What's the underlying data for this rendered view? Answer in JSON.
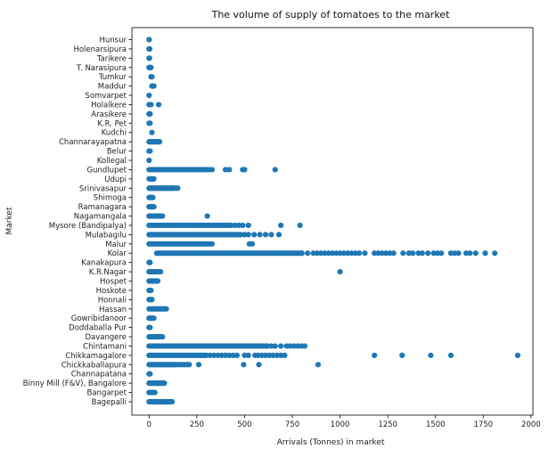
{
  "chart_data": {
    "type": "scatter",
    "title": "The volume of supply of tomatoes to the market",
    "xlabel": "Arrivals (Tonnes) in market",
    "ylabel": "Market",
    "xlim": [
      -90,
      2010
    ],
    "xticks": [
      0,
      250,
      500,
      750,
      1000,
      1250,
      1500,
      1750,
      2000
    ],
    "grid": false,
    "marker_color": "#1f77b4",
    "categories": [
      "Bagepalli",
      "Bangarpet",
      "Binny Mill (F&V), Bangalore",
      "Channapatana",
      "Chickkaballapura",
      "Chikkamagalore",
      "Chintamani",
      "Davangere",
      "Doddaballa Pur",
      "Gowribidanoor",
      "Hassan",
      "Honnali",
      "Hoskote",
      "Hospet",
      "K.R.Nagar",
      "Kanakapura",
      "Kolar",
      "Malur",
      "Mulabagilu",
      "Mysore (Bandipalya)",
      "Nagamangala",
      "Ramanagara",
      "Shimoga",
      "Srinivasapur",
      "Udupi",
      "Gundlupet",
      "Kollegal",
      "Belur",
      "Channarayapatna",
      "Kudchi",
      "K.R. Pet",
      "Arasikere",
      "Holalkere",
      "Somvarpet",
      "Maddur",
      "Tumkur",
      "T. Narasipura",
      "Tarikere",
      "Holenarsipura",
      "Hunsur"
    ],
    "series": [
      {
        "points": [
          {
            "market": "Bagepalli",
            "x": [
              0,
              5,
              10,
              15,
              20,
              25,
              30,
              35,
              40,
              45,
              50,
              55,
              60,
              65,
              70,
              75,
              80,
              85,
              90,
              95,
              100,
              105,
              110,
              115,
              120
            ]
          },
          {
            "market": "Bangarpet",
            "x": [
              0,
              5,
              10,
              15,
              20,
              25,
              30
            ]
          },
          {
            "market": "Binny Mill (F&V), Bangalore",
            "x": [
              0,
              5,
              10,
              15,
              20,
              25,
              30,
              35,
              40,
              45,
              50,
              55,
              60,
              65,
              70,
              75,
              80
            ]
          },
          {
            "market": "Channapatana",
            "x": [
              0,
              5
            ]
          },
          {
            "market": "Chickkaballapura",
            "x": [
              0,
              5,
              10,
              15,
              20,
              25,
              30,
              35,
              40,
              45,
              50,
              55,
              60,
              65,
              70,
              75,
              80,
              85,
              90,
              95,
              100,
              105,
              110,
              115,
              120,
              125,
              130,
              135,
              140,
              150,
              160,
              170,
              180,
              190,
              200,
              210,
              260,
              495,
              575,
              885
            ]
          },
          {
            "market": "Chikkamagalore",
            "x": [
              0,
              10,
              20,
              30,
              40,
              50,
              60,
              70,
              80,
              90,
              100,
              110,
              120,
              130,
              140,
              150,
              160,
              170,
              180,
              190,
              200,
              210,
              220,
              230,
              240,
              250,
              260,
              270,
              280,
              290,
              300,
              320,
              340,
              360,
              380,
              400,
              420,
              440,
              460,
              500,
              520,
              555,
              570,
              590,
              610,
              630,
              650,
              670,
              690,
              710,
              1180,
              1325,
              1475,
              1580,
              1930
            ]
          },
          {
            "market": "Chintamani",
            "x": [
              0,
              10,
              20,
              30,
              40,
              50,
              60,
              70,
              80,
              90,
              100,
              110,
              120,
              130,
              140,
              150,
              160,
              170,
              180,
              190,
              200,
              210,
              220,
              230,
              240,
              250,
              260,
              270,
              280,
              290,
              300,
              310,
              320,
              330,
              340,
              350,
              360,
              370,
              380,
              390,
              400,
              410,
              420,
              430,
              440,
              450,
              460,
              470,
              480,
              490,
              500,
              510,
              520,
              530,
              540,
              550,
              560,
              570,
              580,
              590,
              600,
              610,
              620,
              640,
              660,
              690,
              720,
              740,
              760,
              780,
              800,
              815
            ]
          },
          {
            "market": "Davangere",
            "x": [
              0,
              5,
              10,
              15,
              20,
              25,
              30,
              35,
              40,
              45,
              50,
              55,
              60,
              65,
              70
            ]
          },
          {
            "market": "Doddaballa Pur",
            "x": [
              0,
              5
            ]
          },
          {
            "market": "Gowribidanoor",
            "x": [
              0,
              5,
              10,
              15,
              20,
              25
            ]
          },
          {
            "market": "Hassan",
            "x": [
              0,
              10,
              20,
              30,
              40,
              50,
              60,
              70,
              80,
              90
            ]
          },
          {
            "market": "Honnali",
            "x": [
              0,
              5,
              10,
              15
            ]
          },
          {
            "market": "Hoskote",
            "x": [
              0,
              5,
              10
            ]
          },
          {
            "market": "Hospet",
            "x": [
              0,
              5,
              10,
              15,
              20,
              25,
              30,
              35,
              40,
              45
            ]
          },
          {
            "market": "K.R.Nagar",
            "x": [
              0,
              5,
              10,
              15,
              20,
              25,
              30,
              35,
              40,
              45,
              50,
              55,
              60,
              1000
            ]
          },
          {
            "market": "Kanakapura",
            "x": [
              0,
              5
            ]
          },
          {
            "market": "Kolar",
            "x": [
              40,
              50,
              60,
              70,
              80,
              90,
              100,
              110,
              120,
              130,
              140,
              150,
              160,
              170,
              180,
              190,
              200,
              210,
              220,
              230,
              240,
              250,
              260,
              270,
              280,
              290,
              300,
              310,
              320,
              330,
              340,
              350,
              360,
              370,
              380,
              390,
              400,
              410,
              420,
              430,
              440,
              450,
              460,
              470,
              480,
              490,
              500,
              510,
              520,
              530,
              540,
              550,
              560,
              570,
              580,
              590,
              600,
              610,
              620,
              630,
              640,
              650,
              660,
              670,
              680,
              690,
              700,
              710,
              720,
              730,
              740,
              750,
              760,
              770,
              780,
              790,
              800,
              830,
              860,
              880,
              900,
              920,
              940,
              960,
              980,
              1000,
              1020,
              1040,
              1060,
              1080,
              1100,
              1130,
              1180,
              1200,
              1220,
              1240,
              1260,
              1280,
              1330,
              1360,
              1380,
              1410,
              1430,
              1460,
              1490,
              1510,
              1530,
              1580,
              1600,
              1620,
              1660,
              1680,
              1710,
              1760,
              1810
            ]
          },
          {
            "market": "Malur",
            "x": [
              0,
              10,
              20,
              30,
              40,
              50,
              60,
              70,
              80,
              90,
              100,
              110,
              120,
              130,
              140,
              150,
              160,
              170,
              180,
              190,
              200,
              210,
              220,
              230,
              240,
              250,
              260,
              270,
              280,
              290,
              300,
              310,
              320,
              330,
              525,
              540
            ]
          },
          {
            "market": "Mulabagilu",
            "x": [
              0,
              10,
              20,
              30,
              40,
              50,
              60,
              70,
              80,
              90,
              100,
              110,
              120,
              130,
              140,
              150,
              160,
              170,
              180,
              190,
              200,
              210,
              220,
              230,
              240,
              250,
              260,
              270,
              280,
              290,
              300,
              310,
              320,
              330,
              340,
              350,
              360,
              370,
              380,
              390,
              400,
              410,
              420,
              430,
              440,
              450,
              460,
              470,
              480,
              500,
              520,
              550,
              580,
              610,
              640,
              680
            ]
          },
          {
            "market": "Mysore (Bandipalya)",
            "x": [
              0,
              10,
              20,
              30,
              40,
              50,
              60,
              70,
              80,
              90,
              100,
              110,
              120,
              130,
              140,
              150,
              160,
              170,
              180,
              190,
              200,
              210,
              220,
              230,
              240,
              250,
              260,
              270,
              280,
              290,
              300,
              310,
              320,
              330,
              340,
              350,
              360,
              370,
              380,
              390,
              400,
              410,
              420,
              430,
              450,
              470,
              490,
              520,
              690,
              790
            ]
          },
          {
            "market": "Nagamangala",
            "x": [
              0,
              5,
              10,
              15,
              20,
              25,
              30,
              35,
              40,
              45,
              50,
              55,
              60,
              65,
              70,
              305
            ]
          },
          {
            "market": "Ramanagara",
            "x": [
              0,
              5,
              10,
              15,
              20,
              25
            ]
          },
          {
            "market": "Shimoga",
            "x": [
              0,
              5,
              10,
              15,
              20
            ]
          },
          {
            "market": "Srinivasapur",
            "x": [
              0,
              5,
              10,
              15,
              20,
              25,
              30,
              35,
              40,
              45,
              50,
              55,
              60,
              65,
              70,
              75,
              80,
              85,
              90,
              95,
              100,
              105,
              110,
              115,
              120,
              125,
              130,
              140,
              150
            ]
          },
          {
            "market": "Udupi",
            "x": [
              0,
              5,
              10,
              15,
              20,
              25
            ]
          },
          {
            "market": "Gundlupet",
            "x": [
              0,
              10,
              20,
              30,
              40,
              50,
              60,
              70,
              80,
              90,
              100,
              110,
              120,
              130,
              140,
              150,
              160,
              170,
              180,
              190,
              200,
              210,
              220,
              230,
              240,
              250,
              260,
              270,
              280,
              290,
              300,
              315,
              330,
              400,
              420,
              490,
              500,
              660
            ]
          },
          {
            "market": "Kollegal",
            "x": [
              0
            ]
          },
          {
            "market": "Belur",
            "x": [
              0,
              5
            ]
          },
          {
            "market": "Channarayapatna",
            "x": [
              0,
              5,
              10,
              15,
              20,
              25,
              30,
              35,
              40,
              45,
              50,
              55
            ]
          },
          {
            "market": "Kudchi",
            "x": [
              15
            ]
          },
          {
            "market": "K.R. Pet",
            "x": [
              0,
              5
            ]
          },
          {
            "market": "Arasikere",
            "x": [
              0,
              5
            ]
          },
          {
            "market": "Holalkere",
            "x": [
              0,
              5,
              10,
              50
            ]
          },
          {
            "market": "Somvarpet",
            "x": [
              0
            ]
          },
          {
            "market": "Maddur",
            "x": [
              15,
              20,
              25
            ]
          },
          {
            "market": "Tumkur",
            "x": [
              10,
              15
            ]
          },
          {
            "market": "T. Narasipura",
            "x": [
              0,
              5,
              10
            ]
          },
          {
            "market": "Tarikere",
            "x": [
              0,
              2
            ]
          },
          {
            "market": "Holenarsipura",
            "x": [
              0,
              3
            ]
          },
          {
            "market": "Hunsur",
            "x": [
              0
            ]
          }
        ]
      }
    ]
  }
}
